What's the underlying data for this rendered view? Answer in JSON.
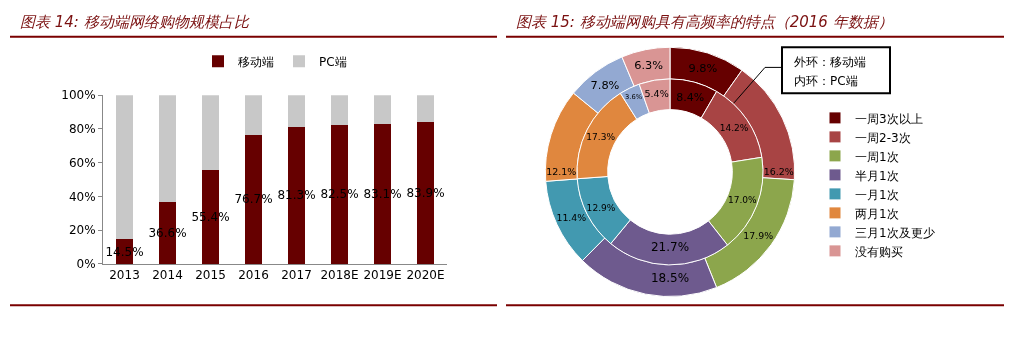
{
  "chart_data": [
    {
      "type": "bar",
      "title": "图表 14: 移动端网络购物规模占比",
      "stacked": true,
      "legend": "top",
      "categories": [
        "2013",
        "2014",
        "2015",
        "2016",
        "2017",
        "2018E",
        "2019E",
        "2020E"
      ],
      "series": [
        {
          "name": "移动端",
          "color": "#660000",
          "values": [
            14.5,
            36.6,
            55.4,
            76.7,
            81.3,
            82.5,
            83.1,
            83.9
          ],
          "value_labels": [
            "14.5%",
            "36.6%",
            "55.4%",
            "76.7%",
            "81.3%",
            "82.5%",
            "83.1%",
            "83.9%"
          ]
        },
        {
          "name": "PC端",
          "color": "#c8c8c8",
          "values": [
            85.5,
            63.4,
            44.6,
            23.3,
            18.7,
            17.5,
            16.9,
            16.1
          ]
        }
      ],
      "ylim": [
        0,
        100
      ],
      "yticks": [
        {
          "value": 0,
          "label": "0%"
        },
        {
          "value": 20,
          "label": "20%"
        },
        {
          "value": 40,
          "label": "40%"
        },
        {
          "value": 60,
          "label": "60%"
        },
        {
          "value": 80,
          "label": "80%"
        },
        {
          "value": 100,
          "label": "100%"
        }
      ],
      "grid": false
    },
    {
      "type": "donut",
      "title": "图表 15: 移动端网购具有高频率的特点（2016 年数据）",
      "legend": "right",
      "categories": [
        "一周3次以上",
        "一周2-3次",
        "一周1次",
        "半月1次",
        "一月1次",
        "两月1次",
        "三月1次及更少",
        "没有购买"
      ],
      "colors": [
        "#660000",
        "#a84444",
        "#8ca64c",
        "#6e5a8e",
        "#4299b0",
        "#e0873e",
        "#93a9d2",
        "#d99594"
      ],
      "series": [
        {
          "values": [
            9.8,
            16.2,
            17.9,
            18.5,
            11.4,
            12.1,
            7.8,
            6.3
          ],
          "value_labels": [
            "9.8%",
            "16.2%",
            "17.9%",
            "18.5%",
            "11.4%",
            "12.1%",
            "7.8%",
            "6.3%"
          ]
        },
        {
          "values": [
            8.4,
            14.2,
            17.0,
            21.7,
            12.9,
            17.3,
            3.6,
            5.4
          ],
          "value_labels": [
            "8.4%",
            "14.2%",
            "17.0%",
            "21.7%",
            "12.9%",
            "17.3%",
            "3.6%",
            "5.4%"
          ]
        }
      ],
      "annotations": [
        "外环：移动端",
        "内环：PC端"
      ]
    }
  ]
}
